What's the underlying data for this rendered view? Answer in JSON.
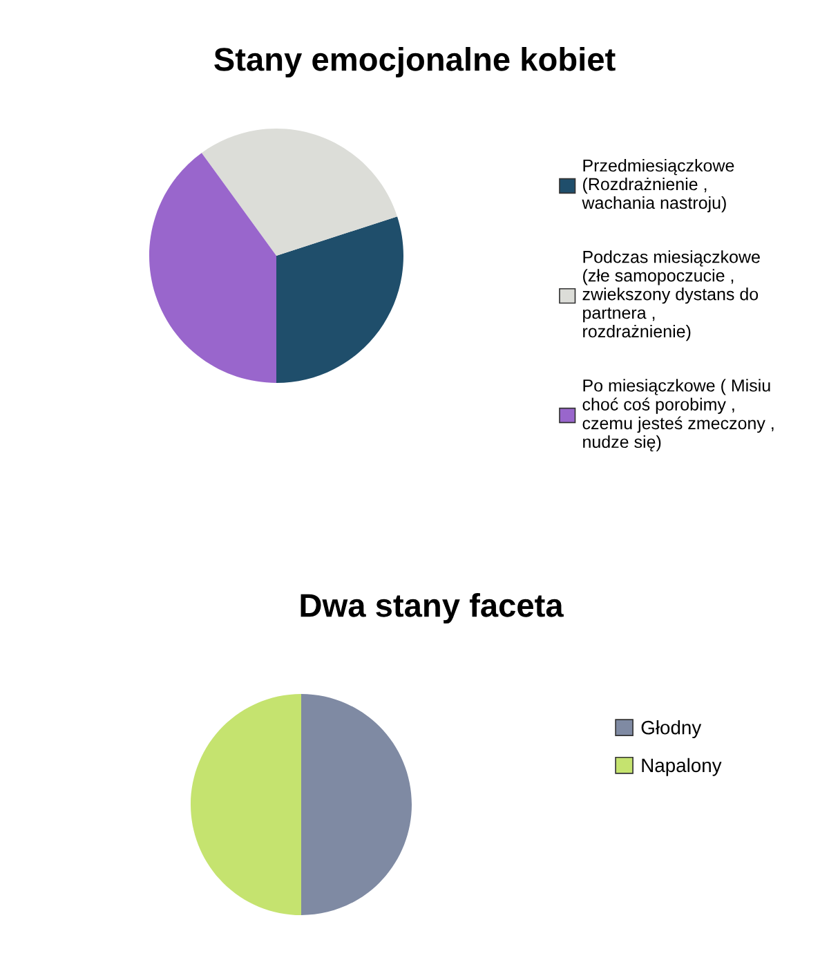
{
  "chart_data": [
    {
      "type": "pie",
      "title": "Stany emocjonalne kobiet",
      "categories": [
        "Przedmiesiączkowe\n(Rozdrażnienie ,\nwachania nastroju)",
        "Podczas miesiączkowe\n(złe samopoczucie ,\nzwiekszony dystans do\npartnera ,\nrozdrażnienie)",
        "Po miesiączkowe ( Misiu\nchoć coś porobimy ,\nczemu jesteś zmeczony ,\nnudze się)"
      ],
      "values": [
        30,
        30,
        40
      ],
      "colors": [
        "#1f4e6b",
        "#dcddd8",
        "#9966cc"
      ],
      "legend": "right"
    },
    {
      "type": "pie",
      "title": "Dwa stany faceta",
      "categories": [
        "Głodny",
        "Napalony"
      ],
      "values": [
        50,
        50
      ],
      "colors": [
        "#7f8aa3",
        "#c5e36f"
      ],
      "legend": "right"
    }
  ]
}
